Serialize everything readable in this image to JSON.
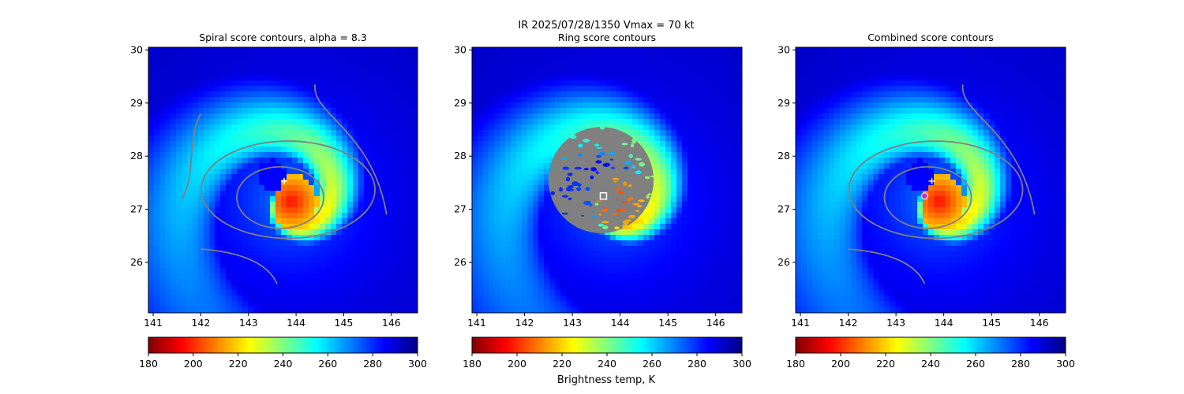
{
  "suptitle": "IR  2025/07/28/1350    Vmax = 70 kt",
  "colorbar_label": "Brightness temp, K",
  "colormap": [
    "#800000",
    "#ff0000",
    "#ff8000",
    "#ffff00",
    "#80ff80",
    "#00ffff",
    "#0080ff",
    "#0000ff",
    "#000080"
  ],
  "contour_color": "#808080",
  "chart_data": [
    {
      "type": "heatmap",
      "title": "Spiral score contours, alpha =  8.3",
      "xlim": [
        140.9,
        146.55
      ],
      "ylim": [
        25.05,
        30.05
      ],
      "xticks": [
        "141",
        "142",
        "143",
        "144",
        "145",
        "146"
      ],
      "yticks": [
        "26",
        "27",
        "28",
        "29",
        "30"
      ],
      "colorbar": {
        "range": [
          180,
          300
        ],
        "ticks": [
          "180",
          "200",
          "220",
          "240",
          "260",
          "280",
          "300"
        ]
      },
      "center_marker": {
        "symbol": "+",
        "lon": 143.75,
        "lat": 27.53,
        "color": "#ffffff"
      },
      "storm_center": {
        "lon": 143.9,
        "lat": 27.15
      }
    },
    {
      "type": "heatmap",
      "title": "Ring score contours",
      "xlim": [
        140.9,
        146.55
      ],
      "ylim": [
        25.05,
        30.05
      ],
      "xticks": [
        "141",
        "142",
        "143",
        "144",
        "145",
        "146"
      ],
      "yticks": [
        "26",
        "27",
        "28",
        "29",
        "30"
      ],
      "colorbar": {
        "range": [
          180,
          300
        ],
        "ticks": [
          "180",
          "200",
          "220",
          "240",
          "260",
          "280",
          "300"
        ]
      },
      "center_marker": {
        "symbol": "square",
        "lon": 143.65,
        "lat": 27.25,
        "color": "#ffffff"
      },
      "storm_center": {
        "lon": 143.9,
        "lat": 27.15
      },
      "ring_region": {
        "center_lon": 143.6,
        "center_lat": 27.55,
        "radius_lon": 1.1,
        "radius_lat": 1.0
      }
    },
    {
      "type": "heatmap",
      "title": "Combined score contours",
      "xlim": [
        140.9,
        146.55
      ],
      "ylim": [
        25.05,
        30.05
      ],
      "xticks": [
        "141",
        "142",
        "143",
        "144",
        "145",
        "146"
      ],
      "yticks": [
        "26",
        "27",
        "28",
        "29",
        "30"
      ],
      "colorbar": {
        "range": [
          180,
          300
        ],
        "ticks": [
          "180",
          "200",
          "220",
          "240",
          "260",
          "280",
          "300"
        ]
      },
      "center_marker": {
        "symbol": "+",
        "lon": 143.75,
        "lat": 27.53,
        "color": "#ffffff"
      },
      "extra_marker": {
        "symbol": "circle",
        "lon": 143.6,
        "lat": 27.25,
        "color": "#b040c0"
      },
      "storm_center": {
        "lon": 143.9,
        "lat": 27.15
      }
    }
  ]
}
